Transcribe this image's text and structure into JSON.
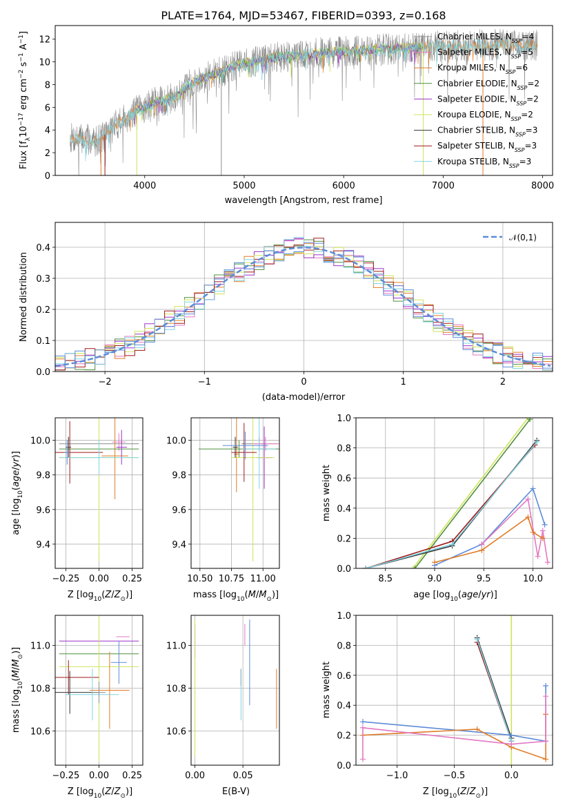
{
  "colors": {
    "chabrier_miles": "#8c8c8c",
    "salpeter_miles": "#e377c2",
    "kroupa_miles": "#e07b26",
    "chabrier_elodie": "#4f8f3c",
    "salpeter_elodie": "#9b30c8",
    "kroupa_elodie": "#cfe35a",
    "chabrier_stelib": "#333333",
    "salpeter_stelib": "#a01818",
    "kroupa_stelib": "#7fd3e0",
    "blue": "#5b8bd8",
    "grid": "#b0b0b0"
  },
  "chart_data": [
    {
      "id": "spectrum",
      "type": "line",
      "title": "PLATE=1764, MJD=53467, FIBERID=0393, z=0.168",
      "xlabel": "wavelength [Angstrom, rest frame]",
      "ylabel": "Flux [f_λ 10^−17 erg cm^−2 s^−1 A^−1]",
      "xlim": [
        3100,
        8100
      ],
      "ylim": [
        0,
        13.2
      ],
      "xticks": [
        4000,
        5000,
        6000,
        7000,
        8000
      ],
      "yticks": [
        0,
        2,
        4,
        6,
        8,
        10,
        12
      ],
      "grid": false,
      "legend_position": "top-right",
      "legend": [
        "Chabrier MILES, N_SSP=4",
        "Salpeter MILES, N_SSP=5",
        "Kroupa MILES, N_SSP=6",
        "Chabrier ELODIE, N_SSP=2",
        "Salpeter ELODIE, N_SSP=2",
        "Kroupa ELODIE, N_SSP=2",
        "Chabrier STELIB, N_SSP=3",
        "Salpeter STELIB, N_SSP=3",
        "Kroupa STELIB, N_SSP=3"
      ],
      "continuum": {
        "x": [
          3250,
          3400,
          3500,
          3600,
          3700,
          3800,
          3900,
          4000,
          4100,
          4200,
          4300,
          4400,
          4500,
          4600,
          4700,
          4800,
          4900,
          5000,
          5200,
          5400,
          5600,
          5800,
          6000,
          6200,
          6400,
          6600,
          6800,
          7000,
          7200,
          7400,
          7600,
          7800,
          7950
        ],
        "y": [
          3.3,
          3.2,
          3.0,
          3.6,
          4.4,
          5.0,
          5.6,
          6.0,
          6.4,
          6.6,
          6.9,
          7.6,
          8.3,
          8.6,
          8.9,
          9.2,
          9.6,
          9.8,
          10.2,
          10.5,
          10.6,
          10.8,
          10.9,
          11.0,
          11.1,
          11.2,
          11.3,
          11.4,
          11.4,
          11.5,
          11.5,
          11.4,
          11.5
        ]
      }
    },
    {
      "id": "residual-histogram",
      "type": "bar",
      "xlabel": "(data-model)/error",
      "ylabel": "Normed distribution",
      "xlim": [
        -2.5,
        2.5
      ],
      "ylim": [
        0,
        0.48
      ],
      "xticks": [
        -2,
        -1,
        0,
        1,
        2
      ],
      "yticks": [
        0.0,
        0.1,
        0.2,
        0.3,
        0.4
      ],
      "grid": true,
      "legend_position": "top-right",
      "legend": [
        "𝒩(0,1)"
      ],
      "bin_width": 0.1,
      "gaussian": {
        "mean": 0,
        "sigma": 1
      }
    },
    {
      "id": "age-vs-Z",
      "type": "scatter",
      "xlabel": "Z [log10(Z/Z⊙)]",
      "ylabel": "age  [log10(age/yr)]",
      "xlim": [
        -0.33,
        0.33
      ],
      "ylim": [
        9.26,
        10.13
      ],
      "xticks": [
        -0.25,
        0.0,
        0.25
      ],
      "yticks": [
        9.4,
        9.6,
        9.8,
        10.0
      ],
      "grid": true,
      "points": [
        {
          "model": "chabrier_miles",
          "x": 0.0,
          "y": 9.98,
          "xerr": 0.3,
          "yerr": 0.04
        },
        {
          "model": "salpeter_miles",
          "x": 0.15,
          "y": 9.99,
          "xerr": 0.05,
          "yerr": 0.05
        },
        {
          "model": "kroupa_miles",
          "x": 0.12,
          "y": 9.91,
          "xerr": 0.1,
          "yerr": 0.25
        },
        {
          "model": "chabrier_elodie",
          "x": 0.0,
          "y": 9.95,
          "xerr": 0.3,
          "yerr": 0.05
        },
        {
          "model": "salpeter_elodie",
          "x": 0.17,
          "y": 9.96,
          "xerr": 0.04,
          "yerr": 0.1
        },
        {
          "model": "kroupa_elodie",
          "x": 0.0,
          "y": 9.9,
          "xerr": 0.3,
          "yerr": 0.6
        },
        {
          "model": "chabrier_stelib",
          "x": -0.23,
          "y": 9.96,
          "xerr": 0.02,
          "yerr": 0.06
        },
        {
          "model": "salpeter_stelib",
          "x": -0.22,
          "y": 9.93,
          "xerr": 0.25,
          "yerr": 0.18
        },
        {
          "model": "kroupa_stelib",
          "x": 0.0,
          "y": 9.9,
          "xerr": 0.3,
          "yerr": 0.1
        },
        {
          "model": "blue",
          "x": -0.24,
          "y": 9.93,
          "xerr": 0.02,
          "yerr": 0.07
        }
      ]
    },
    {
      "id": "age-vs-mass",
      "type": "scatter",
      "xlabel": "mass [log10(M/M⊙)]",
      "ylabel": "",
      "xlim": [
        10.43,
        11.13
      ],
      "ylim": [
        9.26,
        10.13
      ],
      "xticks": [
        10.5,
        10.75,
        11.0
      ],
      "yticks": [
        9.4,
        9.6,
        9.8,
        10.0
      ],
      "grid": true,
      "points": [
        {
          "model": "chabrier_miles",
          "x": 10.97,
          "y": 9.98,
          "xerr": 0.14,
          "yerr": 0.04
        },
        {
          "model": "salpeter_miles",
          "x": 11.02,
          "y": 9.98,
          "xerr": 0.11,
          "yerr": 0.04
        },
        {
          "model": "kroupa_miles",
          "x": 10.79,
          "y": 9.92,
          "xerr": 0.02,
          "yerr": 0.22
        },
        {
          "model": "chabrier_elodie",
          "x": 10.81,
          "y": 9.95,
          "xerr": 0.32,
          "yerr": 0.05
        },
        {
          "model": "salpeter_elodie",
          "x": 11.01,
          "y": 9.9,
          "xerr": 0.06,
          "yerr": 0.18
        },
        {
          "model": "kroupa_elodie",
          "x": 10.92,
          "y": 9.9,
          "xerr": 0.17,
          "yerr": 0.6
        },
        {
          "model": "chabrier_stelib",
          "x": 10.78,
          "y": 9.96,
          "xerr": 0.02,
          "yerr": 0.06
        },
        {
          "model": "salpeter_stelib",
          "x": 10.85,
          "y": 9.93,
          "xerr": 0.1,
          "yerr": 0.17
        },
        {
          "model": "kroupa_stelib",
          "x": 10.97,
          "y": 9.95,
          "xerr": 0.13,
          "yerr": 0.23
        },
        {
          "model": "blue",
          "x": 10.86,
          "y": 9.97,
          "xerr": 0.18,
          "yerr": 0.08
        }
      ]
    },
    {
      "id": "mass-weight-vs-age",
      "type": "line",
      "xlabel": "age  [log10(age/yr)]",
      "ylabel": "mass weight",
      "xlim": [
        8.2,
        10.2
      ],
      "ylim": [
        0,
        1
      ],
      "xticks": [
        8.5,
        9.0,
        9.5,
        10.0
      ],
      "yticks": [
        0.0,
        0.2,
        0.4,
        0.6,
        0.8,
        1.0
      ],
      "grid": true,
      "series": [
        {
          "model": "kroupa_elodie",
          "x": [
            8.78,
            9.95
          ],
          "y": [
            0.0,
            1.0
          ]
        },
        {
          "model": "chabrier_elodie",
          "x": [
            8.8,
            9.97
          ],
          "y": [
            0.0,
            0.99
          ]
        },
        {
          "model": "chabrier_stelib",
          "x": [
            8.3,
            9.18,
            10.04
          ],
          "y": [
            0.0,
            0.15,
            0.85
          ]
        },
        {
          "model": "salpeter_stelib",
          "x": [
            8.3,
            9.18,
            10.02
          ],
          "y": [
            0.0,
            0.18,
            0.82
          ]
        },
        {
          "model": "kroupa_stelib",
          "x": [
            8.3,
            9.18,
            10.04
          ],
          "y": [
            0.0,
            0.16,
            0.84
          ]
        },
        {
          "model": "blue",
          "x": [
            9.0,
            9.48,
            10.0,
            10.12
          ],
          "y": [
            0.02,
            0.16,
            0.53,
            0.29
          ]
        },
        {
          "model": "salpeter_miles",
          "x": [
            9.48,
            9.95,
            10.05,
            10.1,
            10.15
          ],
          "y": [
            0.16,
            0.46,
            0.08,
            0.25,
            0.04
          ]
        },
        {
          "model": "kroupa_miles",
          "x": [
            9.0,
            9.48,
            9.95,
            10.0,
            10.1
          ],
          "y": [
            0.04,
            0.12,
            0.34,
            0.24,
            0.2
          ]
        }
      ]
    },
    {
      "id": "mass-vs-Z",
      "type": "scatter",
      "xlabel": "Z [log10(Z/Z⊙)]",
      "ylabel": "mass [log10(M/M⊙)]",
      "xlim": [
        -0.33,
        0.33
      ],
      "ylim": [
        10.44,
        11.14
      ],
      "xticks": [
        -0.25,
        0.0,
        0.25
      ],
      "yticks": [
        10.6,
        10.8,
        11.0
      ],
      "grid": true,
      "points": [
        {
          "model": "salpeter_miles",
          "x": 0.18,
          "y": 11.04,
          "xerr": 0.05,
          "yerr": 0.0
        },
        {
          "model": "salpeter_elodie",
          "x": 0.0,
          "y": 11.02,
          "xerr": 0.3,
          "yerr": 0.08
        },
        {
          "model": "chabrier_elodie",
          "x": 0.0,
          "y": 10.96,
          "xerr": 0.3,
          "yerr": 0.0
        },
        {
          "model": "blue",
          "x": 0.15,
          "y": 10.92,
          "xerr": 0.06,
          "yerr": 0.1
        },
        {
          "model": "kroupa_elodie",
          "x": 0.0,
          "y": 10.9,
          "xerr": 0.3,
          "yerr": 0.44
        },
        {
          "model": "salpeter_stelib",
          "x": -0.23,
          "y": 10.85,
          "xerr": 0.23,
          "yerr": 0.08
        },
        {
          "model": "kroupa_miles",
          "x": 0.08,
          "y": 10.79,
          "xerr": 0.15,
          "yerr": 0.18
        },
        {
          "model": "chabrier_stelib",
          "x": -0.22,
          "y": 10.78,
          "xerr": 0.22,
          "yerr": 0.1
        },
        {
          "model": "kroupa_stelib",
          "x": -0.05,
          "y": 10.77,
          "xerr": 0.2,
          "yerr": 0.12
        },
        {
          "model": "chabrier_miles",
          "x": 0.0,
          "y": 10.78,
          "xerr": 0.05,
          "yerr": 0.05
        }
      ]
    },
    {
      "id": "mass-vs-EBV",
      "type": "scatter",
      "xlabel": "E(B-V)",
      "ylabel": "",
      "xlim": [
        -0.004,
        0.088
      ],
      "ylim": [
        10.44,
        11.14
      ],
      "xticks": [
        0.0,
        0.05
      ],
      "yticks": [
        10.6,
        10.8,
        11.0
      ],
      "grid": true,
      "points": [
        {
          "model": "salpeter_elodie",
          "x": 0.0,
          "y": 11.02,
          "xerr": 0.0,
          "yerr": 0.08
        },
        {
          "model": "kroupa_elodie",
          "x": 0.0,
          "y": 10.8,
          "xerr": 0.0,
          "yerr": 0.32
        },
        {
          "model": "salpeter_miles",
          "x": 0.052,
          "y": 11.05,
          "xerr": 0.0,
          "yerr": 0.05
        },
        {
          "model": "blue",
          "x": 0.057,
          "y": 10.92,
          "xerr": 0.0,
          "yerr": 0.2
        },
        {
          "model": "salpeter_stelib",
          "x": 0.048,
          "y": 10.85,
          "xerr": 0.0,
          "yerr": 0.04
        },
        {
          "model": "kroupa_stelib",
          "x": 0.048,
          "y": 10.77,
          "xerr": 0.0,
          "yerr": 0.12
        },
        {
          "model": "kroupa_miles",
          "x": 0.085,
          "y": 10.75,
          "xerr": 0.0,
          "yerr": 0.14
        }
      ]
    },
    {
      "id": "mass-weight-vs-Z",
      "type": "line",
      "xlabel": "Z [log10(Z/Z⊙)]",
      "ylabel": "mass weight",
      "xlim": [
        -1.36,
        0.36
      ],
      "ylim": [
        0,
        1
      ],
      "xticks": [
        -1.0,
        -0.5,
        0.0
      ],
      "yticks": [
        0.0,
        0.2,
        0.4,
        0.6,
        0.8,
        1.0
      ],
      "grid": true,
      "series": [
        {
          "model": "kroupa_elodie",
          "x": [
            0.0,
            0.0
          ],
          "y": [
            0.0,
            1.0
          ]
        },
        {
          "model": "chabrier_stelib",
          "x": [
            -0.3,
            0.0
          ],
          "y": [
            0.85,
            0.18
          ]
        },
        {
          "model": "salpeter_stelib",
          "x": [
            -0.3,
            0.0
          ],
          "y": [
            0.82,
            0.16
          ]
        },
        {
          "model": "kroupa_stelib",
          "x": [
            -0.3,
            0.0
          ],
          "y": [
            0.84,
            0.16
          ]
        },
        {
          "model": "blue",
          "x": [
            -1.3,
            0.0,
            0.3,
            0.3
          ],
          "y": [
            0.29,
            0.2,
            0.16,
            0.53
          ]
        },
        {
          "model": "kroupa_miles",
          "x": [
            -1.3,
            -0.3,
            0.0,
            0.3,
            0.3
          ],
          "y": [
            0.2,
            0.24,
            0.12,
            0.04,
            0.34
          ]
        },
        {
          "model": "salpeter_miles",
          "x": [
            -1.3,
            -1.3,
            0.0,
            0.3,
            0.3
          ],
          "y": [
            0.04,
            0.25,
            0.14,
            0.16,
            0.46
          ]
        }
      ]
    }
  ]
}
